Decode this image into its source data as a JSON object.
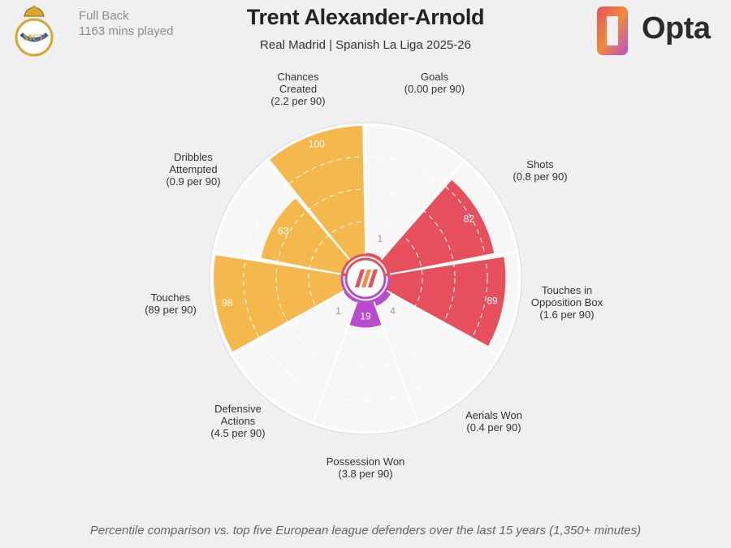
{
  "header": {
    "position": "Full Back",
    "minutes": "1163 mins played",
    "player": "Trent Alexander-Arnold",
    "subtitle": "Real Madrid | Spanish La Liga 2025-26",
    "brand": "Opta"
  },
  "footnote": "Percentile comparison vs. top five European league defenders over the last 15 years (1,350+ minutes)",
  "colors": {
    "background": "#f1f0f0",
    "possession": "#f5b84c",
    "attacking": "#e6505d",
    "defending": "#b84cd1",
    "ring": "#ffffff",
    "sector_bg": "#f8f7f7"
  },
  "chart_data": {
    "type": "polar-bar",
    "scale": [
      0,
      100
    ],
    "metrics": [
      {
        "name": "Goals",
        "per90": "(0.00 per 90)",
        "percentile": 1,
        "group": "attacking"
      },
      {
        "name": "Shots",
        "per90": "(0.8 per 90)",
        "percentile": 82,
        "group": "attacking"
      },
      {
        "name": "Touches in Opposition Box",
        "per90": "(1.6 per 90)",
        "percentile": 89,
        "group": "attacking"
      },
      {
        "name": "Aerials Won",
        "per90": "(0.4 per 90)",
        "percentile": 4,
        "group": "defending"
      },
      {
        "name": "Possession Won",
        "per90": "(3.8 per 90)",
        "percentile": 19,
        "group": "defending"
      },
      {
        "name": "Defensive Actions",
        "per90": "(4.5 per 90)",
        "percentile": 1,
        "group": "defending"
      },
      {
        "name": "Touches",
        "per90": "(89 per 90)",
        "percentile": 98,
        "group": "possession"
      },
      {
        "name": "Dribbles Attempted",
        "per90": "(0.9 per 90)",
        "percentile": 63,
        "group": "possession"
      },
      {
        "name": "Chances Created",
        "per90": "(2.2 per 90)",
        "percentile": 100,
        "group": "possession"
      }
    ]
  }
}
